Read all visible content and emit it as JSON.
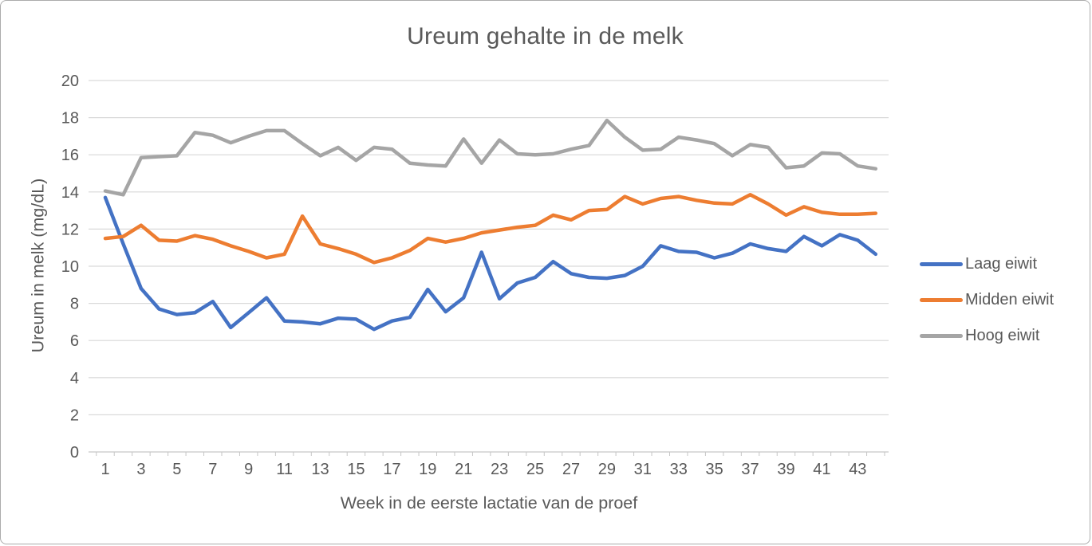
{
  "colors": {
    "series_laag": "#4472C4",
    "series_midden": "#ED7D31",
    "series_hoog": "#A5A5A5",
    "text": "#595959",
    "gridline": "#D9D9D9",
    "axis_line": "#C6C6C6"
  },
  "chart_data": {
    "type": "line",
    "title": "Ureum gehalte in de melk",
    "xlabel": "Week in de eerste lactatie van de proef",
    "ylabel": "Ureum in melk (mg/dL)",
    "ylim": [
      0,
      20
    ],
    "y_tick_step": 2,
    "grid": true,
    "legend_position": "right",
    "x": [
      1,
      2,
      3,
      4,
      5,
      6,
      7,
      8,
      9,
      10,
      11,
      12,
      13,
      14,
      15,
      16,
      17,
      18,
      19,
      20,
      21,
      22,
      23,
      24,
      25,
      26,
      27,
      28,
      29,
      30,
      31,
      32,
      33,
      34,
      35,
      36,
      37,
      38,
      39,
      40,
      41,
      42,
      43,
      44
    ],
    "x_tick_labels": [
      1,
      3,
      5,
      7,
      9,
      11,
      13,
      15,
      17,
      19,
      21,
      23,
      25,
      27,
      29,
      31,
      33,
      35,
      37,
      39,
      41,
      43
    ],
    "series": [
      {
        "name": "Laag eiwit",
        "color": "#4472C4",
        "values": [
          13.7,
          11.2,
          8.8,
          7.7,
          7.4,
          7.5,
          8.1,
          6.7,
          7.5,
          8.3,
          7.05,
          7.0,
          6.9,
          7.2,
          7.15,
          6.6,
          7.05,
          7.25,
          8.75,
          7.55,
          8.3,
          10.75,
          8.25,
          9.1,
          9.4,
          10.25,
          9.6,
          9.4,
          9.35,
          9.5,
          10.0,
          11.1,
          10.8,
          10.75,
          10.45,
          10.7,
          11.2,
          10.95,
          10.8,
          11.6,
          11.1,
          11.7,
          11.4,
          10.65
        ]
      },
      {
        "name": "Midden eiwit",
        "color": "#ED7D31",
        "values": [
          11.5,
          11.6,
          12.2,
          11.4,
          11.35,
          11.65,
          11.45,
          11.1,
          10.8,
          10.45,
          10.65,
          12.7,
          11.2,
          10.95,
          10.65,
          10.2,
          10.45,
          10.85,
          11.5,
          11.3,
          11.5,
          11.8,
          11.95,
          12.1,
          12.2,
          12.75,
          12.5,
          13.0,
          13.05,
          13.75,
          13.35,
          13.65,
          13.75,
          13.55,
          13.4,
          13.35,
          13.85,
          13.35,
          12.75,
          13.2,
          12.9,
          12.8,
          12.8,
          12.85
        ]
      },
      {
        "name": "Hoog eiwit",
        "color": "#A5A5A5",
        "values": [
          14.05,
          13.85,
          15.85,
          15.9,
          15.95,
          17.2,
          17.05,
          16.65,
          17.0,
          17.3,
          17.3,
          16.6,
          15.95,
          16.4,
          15.7,
          16.4,
          16.3,
          15.55,
          15.45,
          15.4,
          16.85,
          15.55,
          16.8,
          16.05,
          16.0,
          16.05,
          16.3,
          16.5,
          17.85,
          16.95,
          16.25,
          16.3,
          16.95,
          16.8,
          16.6,
          15.95,
          16.55,
          16.4,
          15.3,
          15.4,
          16.1,
          16.05,
          15.4,
          15.25
        ]
      }
    ]
  }
}
